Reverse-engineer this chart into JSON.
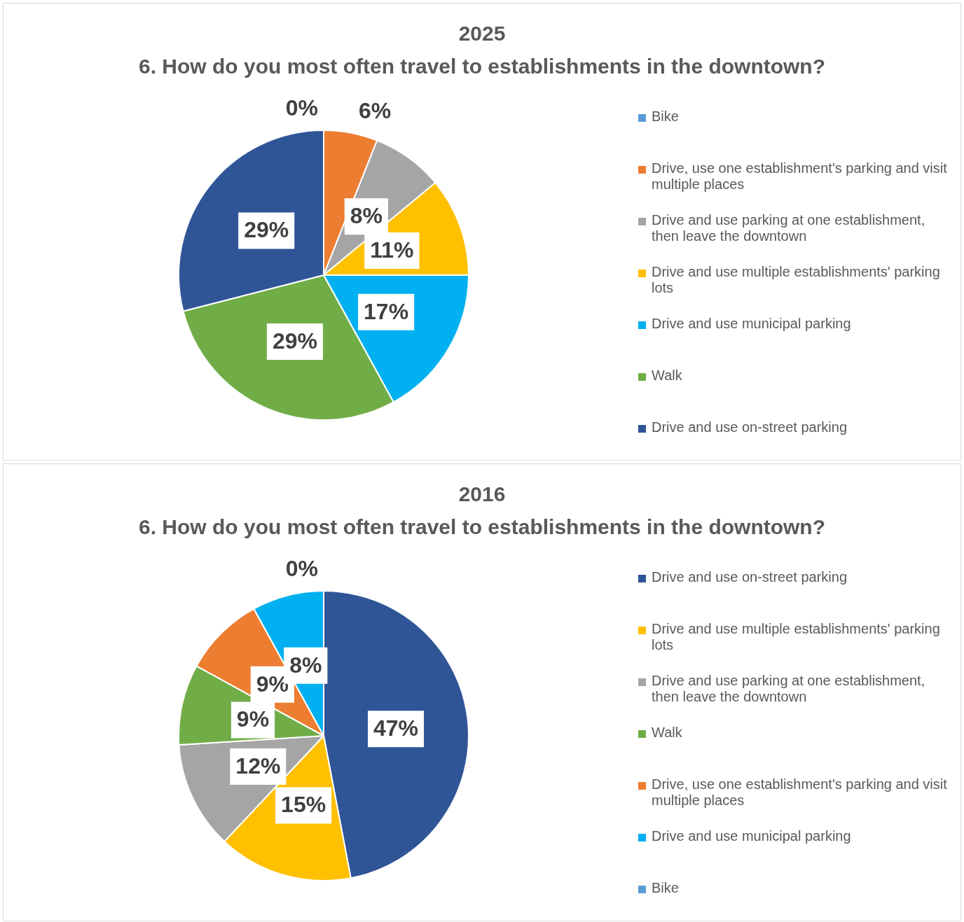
{
  "chart_data": [
    {
      "type": "pie",
      "title": "2025",
      "subtitle": "6. How do you most often travel to establishments in the downtown?",
      "categories": [
        "Bike",
        "Drive, use one establishment's parking and visit multiple places",
        "Drive and use parking at one establishment, then leave the downtown",
        "Drive and use multiple establishments' parking lots",
        "Drive and use municipal parking",
        "Walk",
        "Drive and use on-street parking"
      ],
      "values": [
        0,
        6,
        8,
        11,
        17,
        29,
        29
      ],
      "value_labels": [
        "0%",
        "6%",
        "8%",
        "11%",
        "17%",
        "29%",
        "29%"
      ],
      "colors": [
        "#5b9bd5",
        "#ed7d31",
        "#a5a5a5",
        "#ffc000",
        "#00b0f0",
        "#70ad47",
        "#2f5597"
      ],
      "legend": "right"
    },
    {
      "type": "pie",
      "title": "2016",
      "subtitle": "6. How do you most often travel to establishments in the downtown?",
      "categories": [
        "Drive and use on-street parking",
        "Drive and use multiple establishments' parking lots",
        "Drive and use parking at one establishment, then leave the downtown",
        "Walk",
        "Drive, use one establishment's parking and visit multiple places",
        "Drive and use municipal parking",
        "Bike"
      ],
      "values": [
        47,
        15,
        12,
        9,
        9,
        8,
        0
      ],
      "value_labels": [
        "47%",
        "15%",
        "12%",
        "9%",
        "9%",
        "8%",
        "0%"
      ],
      "colors": [
        "#2f5597",
        "#ffc000",
        "#a5a5a5",
        "#70ad47",
        "#ed7d31",
        "#00b0f0",
        "#5b9bd5"
      ],
      "legend": "right"
    }
  ]
}
